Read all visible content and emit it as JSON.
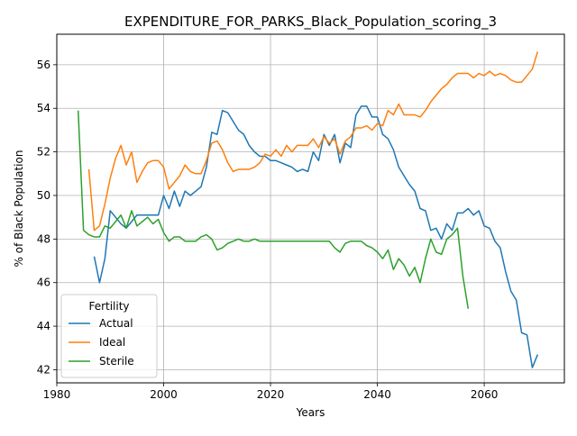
{
  "chart_data": {
    "type": "line",
    "title": "EXPENDITURE_FOR_PARKS_Black_Population_scoring_3",
    "xlabel": "Years",
    "ylabel": "% of Black Population",
    "xlim": [
      1980,
      2075
    ],
    "ylim": [
      41.4,
      57.4
    ],
    "xticks": [
      1980,
      2000,
      2020,
      2040,
      2060
    ],
    "yticks": [
      42,
      44,
      46,
      48,
      50,
      52,
      54,
      56
    ],
    "grid": true,
    "legend": {
      "title": "Fertility",
      "location": "lower-left"
    },
    "colors": {
      "Actual": "#1f77b4",
      "Ideal": "#ff7f0e",
      "Sterile": "#2ca02c"
    },
    "series": [
      {
        "name": "Actual",
        "x": [
          1987,
          1988,
          1989,
          1990,
          1991,
          1992,
          1993,
          1994,
          1995,
          1996,
          1997,
          1998,
          1999,
          2000,
          2001,
          2002,
          2003,
          2004,
          2005,
          2006,
          2007,
          2008,
          2009,
          2010,
          2011,
          2012,
          2013,
          2014,
          2015,
          2016,
          2017,
          2018,
          2019,
          2020,
          2021,
          2022,
          2023,
          2024,
          2025,
          2026,
          2027,
          2028,
          2029,
          2030,
          2031,
          2032,
          2033,
          2034,
          2035,
          2036,
          2037,
          2038,
          2039,
          2040,
          2041,
          2042,
          2043,
          2044,
          2045,
          2046,
          2047,
          2048,
          2049,
          2050,
          2051,
          2052,
          2053,
          2054,
          2055,
          2056,
          2057,
          2058,
          2059,
          2060,
          2061,
          2062,
          2063,
          2064,
          2065,
          2066,
          2067,
          2068,
          2069,
          2070
        ],
        "y": [
          47.2,
          46.0,
          47.1,
          49.3,
          49.0,
          48.7,
          48.5,
          48.8,
          49.1,
          49.1,
          49.1,
          49.1,
          49.1,
          50.0,
          49.4,
          50.2,
          49.5,
          50.2,
          50.0,
          50.2,
          50.4,
          51.3,
          52.9,
          52.8,
          53.9,
          53.8,
          53.4,
          53.0,
          52.8,
          52.3,
          52.0,
          51.8,
          51.8,
          51.6,
          51.6,
          51.5,
          51.4,
          51.3,
          51.1,
          51.2,
          51.1,
          52.0,
          51.6,
          52.8,
          52.3,
          52.8,
          51.5,
          52.4,
          52.2,
          53.7,
          54.1,
          54.1,
          53.6,
          53.6,
          52.8,
          52.6,
          52.1,
          51.3,
          50.9,
          50.5,
          50.2,
          49.4,
          49.3,
          48.4,
          48.5,
          48.0,
          48.7,
          48.4,
          49.2,
          49.2,
          49.4,
          49.1,
          49.3,
          48.6,
          48.5,
          47.9,
          47.6,
          46.5,
          45.6,
          45.2,
          43.7,
          43.6,
          42.1,
          42.7
        ]
      },
      {
        "name": "Ideal",
        "x": [
          1986,
          1987,
          1988,
          1989,
          1990,
          1991,
          1992,
          1993,
          1994,
          1995,
          1996,
          1997,
          1998,
          1999,
          2000,
          2001,
          2002,
          2003,
          2004,
          2005,
          2006,
          2007,
          2008,
          2009,
          2010,
          2011,
          2012,
          2013,
          2014,
          2015,
          2016,
          2017,
          2018,
          2019,
          2020,
          2021,
          2022,
          2023,
          2024,
          2025,
          2026,
          2027,
          2028,
          2029,
          2030,
          2031,
          2032,
          2033,
          2034,
          2035,
          2036,
          2037,
          2038,
          2039,
          2040,
          2041,
          2042,
          2043,
          2044,
          2045,
          2046,
          2047,
          2048,
          2049,
          2050,
          2051,
          2052,
          2053,
          2054,
          2055,
          2056,
          2057,
          2058,
          2059,
          2060,
          2061,
          2062,
          2063,
          2064,
          2065,
          2066,
          2067,
          2068,
          2069,
          2070
        ],
        "y": [
          51.2,
          48.4,
          48.6,
          49.6,
          50.8,
          51.7,
          52.3,
          51.4,
          52.0,
          50.6,
          51.1,
          51.5,
          51.6,
          51.6,
          51.3,
          50.3,
          50.6,
          50.9,
          51.4,
          51.1,
          51.0,
          51.0,
          51.6,
          52.4,
          52.5,
          52.1,
          51.5,
          51.1,
          51.2,
          51.2,
          51.2,
          51.3,
          51.5,
          51.9,
          51.8,
          52.1,
          51.8,
          52.3,
          52.0,
          52.3,
          52.3,
          52.3,
          52.6,
          52.2,
          52.7,
          52.4,
          52.6,
          51.9,
          52.5,
          52.7,
          53.1,
          53.1,
          53.2,
          53.0,
          53.3,
          53.2,
          53.9,
          53.7,
          54.2,
          53.7,
          53.7,
          53.7,
          53.6,
          53.9,
          54.3,
          54.6,
          54.9,
          55.1,
          55.4,
          55.6,
          55.6,
          55.6,
          55.4,
          55.6,
          55.5,
          55.7,
          55.5,
          55.6,
          55.5,
          55.3,
          55.2,
          55.2,
          55.5,
          55.8,
          56.6
        ]
      },
      {
        "name": "Sterile",
        "x": [
          1984,
          1985,
          1986,
          1987,
          1988,
          1989,
          1990,
          1991,
          1992,
          1993,
          1994,
          1995,
          1996,
          1997,
          1998,
          1999,
          2000,
          2001,
          2002,
          2003,
          2004,
          2005,
          2006,
          2007,
          2008,
          2009,
          2010,
          2011,
          2012,
          2013,
          2014,
          2015,
          2016,
          2017,
          2018,
          2019,
          2020,
          2021,
          2022,
          2023,
          2024,
          2025,
          2026,
          2027,
          2028,
          2029,
          2030,
          2031,
          2032,
          2033,
          2034,
          2035,
          2036,
          2037,
          2038,
          2039,
          2040,
          2041,
          2042,
          2043,
          2044,
          2045,
          2046,
          2047,
          2048,
          2049,
          2050,
          2051,
          2052,
          2053,
          2054,
          2055,
          2056,
          2057
        ],
        "y": [
          53.9,
          48.4,
          48.2,
          48.1,
          48.1,
          48.6,
          48.5,
          48.8,
          49.1,
          48.5,
          49.3,
          48.6,
          48.8,
          49.0,
          48.7,
          48.9,
          48.3,
          47.9,
          48.1,
          48.1,
          47.9,
          47.9,
          47.9,
          48.1,
          48.2,
          48.0,
          47.5,
          47.6,
          47.8,
          47.9,
          48.0,
          47.9,
          47.9,
          48.0,
          47.9,
          47.9,
          47.9,
          47.9,
          47.9,
          47.9,
          47.9,
          47.9,
          47.9,
          47.9,
          47.9,
          47.9,
          47.9,
          47.9,
          47.6,
          47.4,
          47.8,
          47.9,
          47.9,
          47.9,
          47.7,
          47.6,
          47.4,
          47.1,
          47.5,
          46.6,
          47.1,
          46.8,
          46.3,
          46.7,
          46.0,
          47.1,
          48.0,
          47.4,
          47.3,
          48.0,
          48.2,
          48.5,
          46.3,
          44.8
        ]
      }
    ]
  }
}
